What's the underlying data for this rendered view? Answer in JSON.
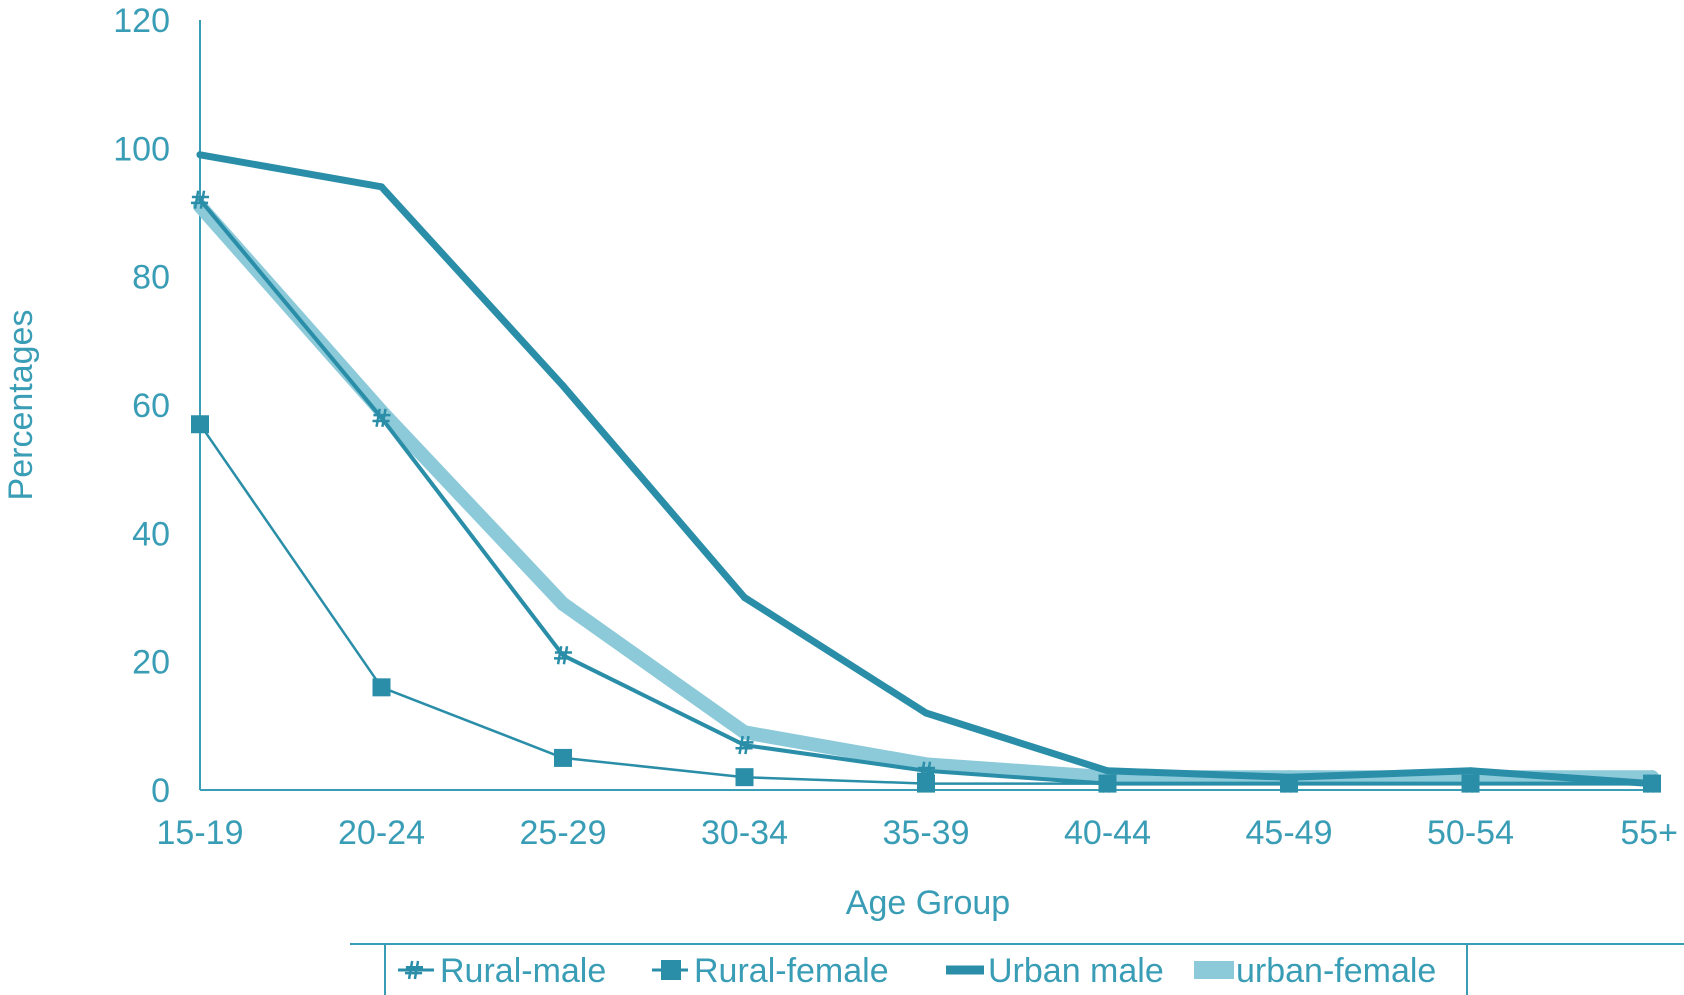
{
  "chart_data": {
    "type": "line",
    "categories": [
      "15-19",
      "20-24",
      "25-29",
      "30-34",
      "35-39",
      "40-44",
      "45-49",
      "50-54",
      "55+"
    ],
    "xlabel": "Age Group",
    "ylabel": "Percentages",
    "ylim": [
      0,
      120
    ],
    "yticks": [
      0,
      20,
      40,
      60,
      80,
      100,
      120
    ],
    "grid": false,
    "legend_position": "bottom",
    "series": [
      {
        "name": "Rural-male",
        "values": [
          92,
          58,
          21,
          7,
          3,
          1,
          1,
          1,
          1
        ],
        "marker": "hash",
        "color": "#2a8ea8"
      },
      {
        "name": "Rural-female",
        "values": [
          57,
          16,
          5,
          2,
          1,
          1,
          1,
          1,
          1
        ],
        "marker": "square",
        "color": "#2a8ea8"
      },
      {
        "name": "Urban male",
        "values": [
          99,
          94,
          63,
          30,
          12,
          3,
          2,
          3,
          1
        ],
        "marker": "none",
        "color": "#2a8ea8"
      },
      {
        "name": "urban-female",
        "values": [
          91,
          59,
          29,
          9,
          4,
          2,
          2,
          2,
          2
        ],
        "marker": "none",
        "color": "#8ccad9"
      }
    ]
  }
}
